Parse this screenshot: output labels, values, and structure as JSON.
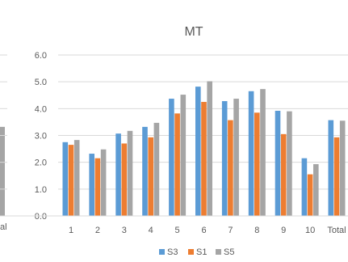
{
  "chart_data": {
    "type": "bar",
    "title": "MT",
    "categories": [
      "1",
      "2",
      "3",
      "4",
      "5",
      "6",
      "7",
      "8",
      "9",
      "10",
      "Total"
    ],
    "series": [
      {
        "name": "S3",
        "color": "#5b9bd5",
        "values": [
          2.75,
          2.32,
          3.07,
          3.32,
          4.37,
          4.82,
          4.28,
          4.65,
          3.92,
          2.15,
          3.57
        ]
      },
      {
        "name": "S1",
        "color": "#ed7d31",
        "values": [
          2.65,
          2.15,
          2.7,
          2.93,
          3.82,
          4.25,
          3.57,
          3.85,
          3.05,
          1.55,
          2.93
        ]
      },
      {
        "name": "S5",
        "color": "#a5a5a5",
        "values": [
          2.83,
          2.48,
          3.17,
          3.47,
          4.52,
          5.02,
          4.37,
          4.73,
          3.9,
          1.93,
          3.55
        ]
      }
    ],
    "yticks": [
      "0.0",
      "1.0",
      "2.0",
      "3.0",
      "4.0",
      "5.0",
      "6.0"
    ],
    "ylim": [
      0,
      6
    ],
    "grid": true,
    "legend": "bottom",
    "partial_left_chart": {
      "tick_label_fragment": "al",
      "bar_value": 3.32,
      "bar_color": "#a5a5a5"
    }
  }
}
